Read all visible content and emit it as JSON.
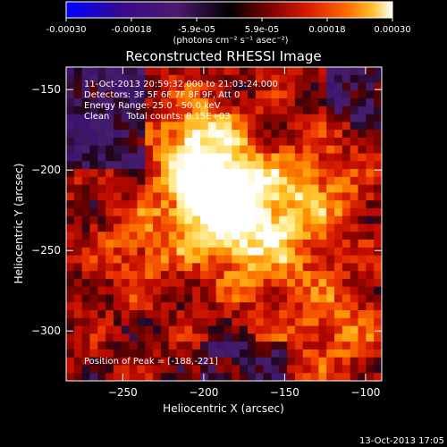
{
  "colorbar": {
    "tick_labels": [
      "-0.00030",
      "-0.00018",
      "-5.9e-05",
      "5.9e-05",
      "0.00018",
      "0.00030"
    ],
    "unit_label": "(photons cm⁻² s⁻¹ asec⁻²)",
    "range": [
      -0.0003,
      0.0003
    ],
    "colors": [
      "#0000ff",
      "#3a0a8a",
      "#4d1a6e",
      "#000000",
      "#7a0000",
      "#d81c00",
      "#ff6a00",
      "#ffc12e",
      "#ffffff"
    ]
  },
  "info": {
    "time_range": "11-Oct-2013 20:59:32.000 to 21:03:24.000",
    "detectors": "Detectors: 3F 5F 6F 7F 8F 9F, Att 0",
    "energy_range": "Energy Range: 25.0 - 50.0 keV",
    "clean_counts": "Clean      Total counts: 8.15E+03",
    "peak_position": "Position of Peak = [-188,-221]"
  },
  "footer": {
    "timestamp": "13-Oct-2013 17:05"
  },
  "chart_data": {
    "type": "heatmap",
    "title": "Reconstructed RHESSI Image",
    "xlabel": "Heliocentric X (arcsec)",
    "ylabel": "Heliocentric Y (arcsec)",
    "xlim": [
      -285,
      -90
    ],
    "ylim": [
      -331,
      -136
    ],
    "x_ticks": [
      -250,
      -200,
      -150,
      -100
    ],
    "x_tick_labels": [
      "−250",
      "−200",
      "−150",
      "−100"
    ],
    "y_ticks": [
      -150,
      -200,
      -250,
      -300
    ],
    "y_tick_labels": [
      "−150",
      "−200",
      "−250",
      "−300"
    ],
    "colormap": "rhessi-diverging",
    "peak": {
      "x": -188,
      "y": -221
    },
    "value_range": [
      -0.0003,
      0.0003
    ]
  }
}
